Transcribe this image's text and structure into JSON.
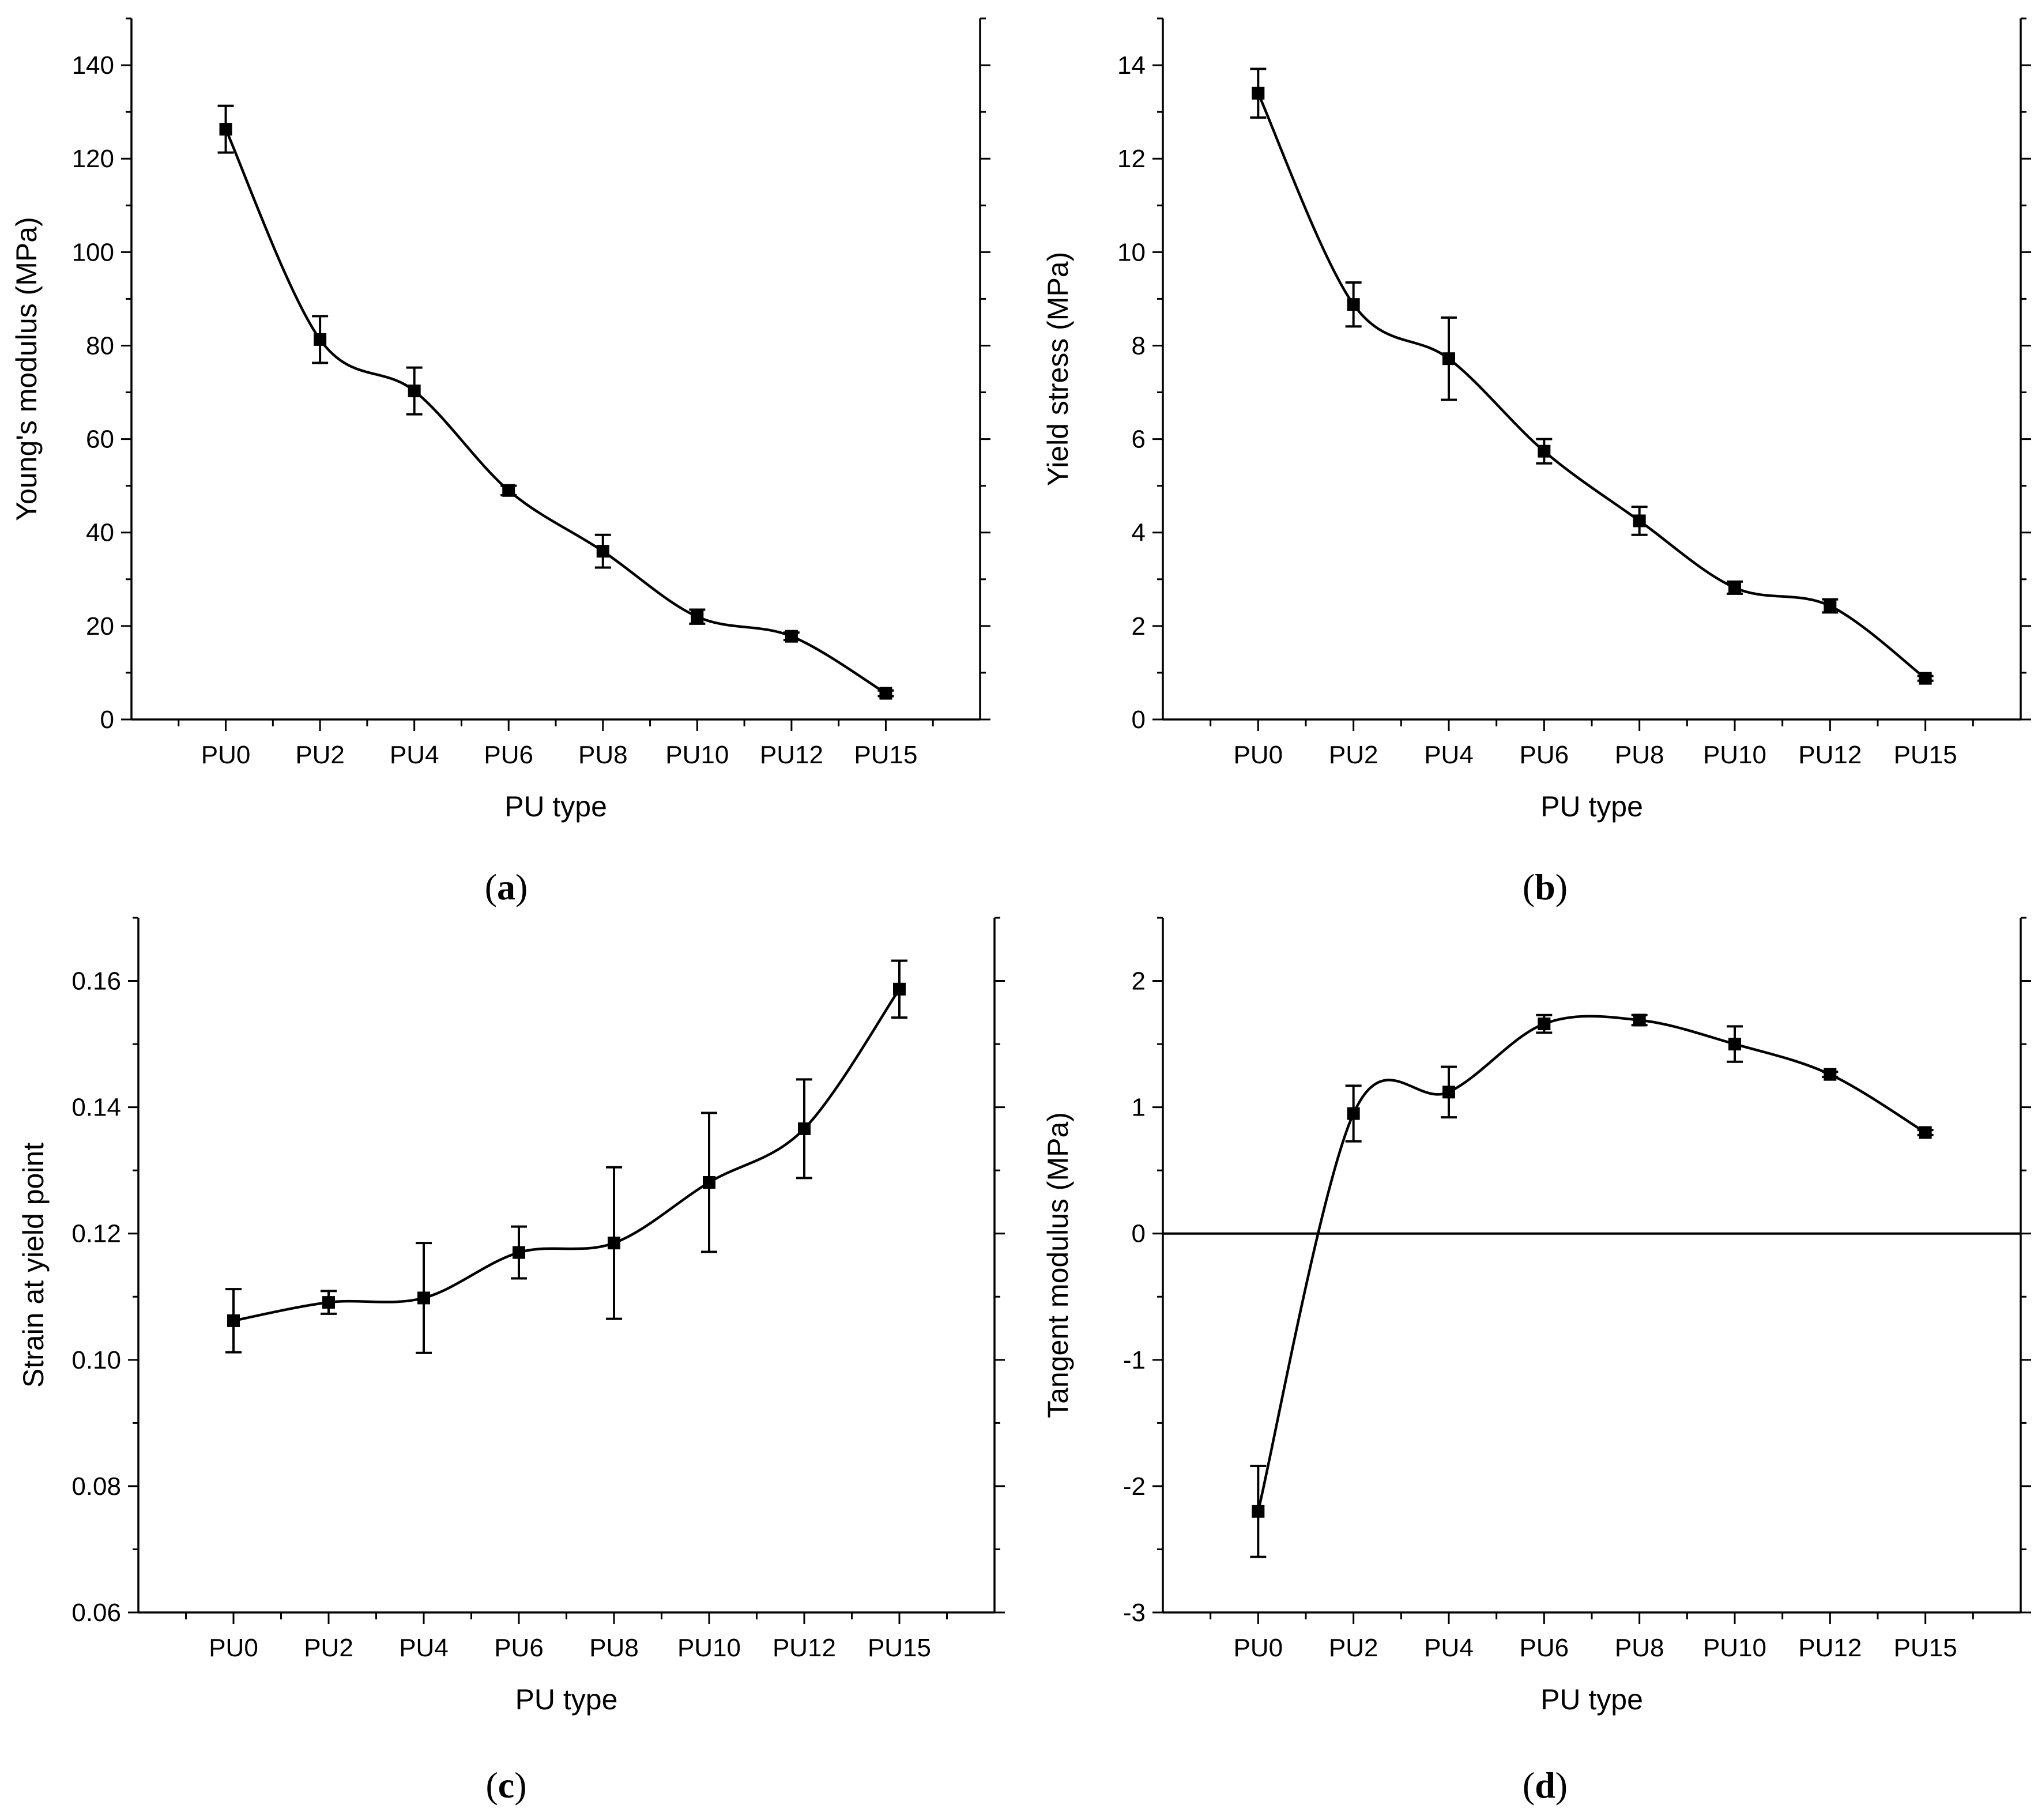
{
  "figure": {
    "panels": [
      {
        "label_open": "(",
        "label_letter": "a",
        "label_close": ")"
      },
      {
        "label_open": "(",
        "label_letter": "b",
        "label_close": ")"
      },
      {
        "label_open": "(",
        "label_letter": "c",
        "label_close": ")"
      },
      {
        "label_open": "(",
        "label_letter": "d",
        "label_close": ")"
      }
    ]
  },
  "chart_data": [
    {
      "type": "scatter",
      "panel": "a",
      "xlabel": "PU type",
      "ylabel": "Young's modulus (MPa)",
      "categories": [
        "PU0",
        "PU2",
        "PU4",
        "PU6",
        "PU8",
        "PU10",
        "PU12",
        "PU15"
      ],
      "values": [
        126.3,
        81.3,
        70.3,
        49.0,
        36.0,
        22.0,
        17.8,
        5.6
      ],
      "errors": [
        5.0,
        5.0,
        5.0,
        1.0,
        3.5,
        1.5,
        0.8,
        0.6
      ],
      "fit": "smooth spline",
      "ylim": [
        0,
        150
      ],
      "yticks": [
        0,
        20,
        40,
        60,
        80,
        100,
        120,
        140
      ],
      "ytick_labels": [
        "0",
        "20",
        "40",
        "60",
        "80",
        "100",
        "120",
        "140"
      ],
      "reference_line": null
    },
    {
      "type": "scatter",
      "panel": "b",
      "xlabel": "PU type",
      "ylabel": "Yield stress (MPa)",
      "categories": [
        "PU0",
        "PU2",
        "PU4",
        "PU6",
        "PU8",
        "PU10",
        "PU12",
        "PU15"
      ],
      "values": [
        13.4,
        8.88,
        7.72,
        5.74,
        4.25,
        2.82,
        2.43,
        0.88
      ],
      "errors": [
        0.52,
        0.47,
        0.88,
        0.26,
        0.3,
        0.13,
        0.14,
        0.05
      ],
      "fit": "smooth spline",
      "ylim": [
        0,
        15
      ],
      "yticks": [
        0,
        2,
        4,
        6,
        8,
        10,
        12,
        14
      ],
      "ytick_labels": [
        "0",
        "2",
        "4",
        "6",
        "8",
        "10",
        "12",
        "14"
      ],
      "reference_line": null
    },
    {
      "type": "scatter",
      "panel": "c",
      "xlabel": "PU type",
      "ylabel": "Strain at yield point",
      "categories": [
        "PU0",
        "PU2",
        "PU4",
        "PU6",
        "PU8",
        "PU10",
        "PU12",
        "PU15"
      ],
      "values": [
        0.1062,
        0.1091,
        0.1098,
        0.117,
        0.1185,
        0.1281,
        0.1366,
        0.1587
      ],
      "errors": [
        0.005,
        0.0018,
        0.0087,
        0.0041,
        0.012,
        0.011,
        0.0078,
        0.0045
      ],
      "fit": "smooth spline",
      "ylim": [
        0.06,
        0.17
      ],
      "yticks": [
        0.06,
        0.08,
        0.1,
        0.12,
        0.14,
        0.16
      ],
      "ytick_labels": [
        "0.06",
        "0.08",
        "0.10",
        "0.12",
        "0.14",
        "0.16"
      ],
      "reference_line": null
    },
    {
      "type": "scatter",
      "panel": "d",
      "xlabel": "PU type",
      "ylabel": "Tangent modulus (MPa)",
      "categories": [
        "PU0",
        "PU2",
        "PU4",
        "PU6",
        "PU8",
        "PU10",
        "PU12",
        "PU15"
      ],
      "values": [
        -2.2,
        0.95,
        1.12,
        1.66,
        1.69,
        1.5,
        1.26,
        0.8
      ],
      "errors": [
        0.36,
        0.22,
        0.2,
        0.07,
        0.04,
        0.14,
        0.02,
        0.02
      ],
      "fit": "smooth spline",
      "ylim": [
        -3,
        2.5
      ],
      "yticks": [
        -3,
        -2,
        -1,
        0,
        1,
        2
      ],
      "ytick_labels": [
        "-3",
        "-2",
        "-1",
        "0",
        "1",
        "2"
      ],
      "reference_line": 0
    }
  ]
}
